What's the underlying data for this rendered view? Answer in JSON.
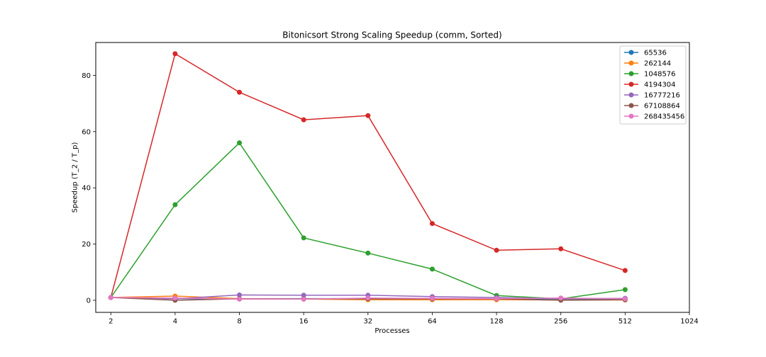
{
  "chart_data": {
    "type": "line",
    "title": "Bitonicsort Strong Scaling Speedup (comm, Sorted)",
    "xlabel": "Processes",
    "ylabel": "Speedup (T_2 / T_p)",
    "x_scale": "log2",
    "x_ticks": [
      2,
      4,
      8,
      16,
      32,
      64,
      128,
      256,
      512,
      1024
    ],
    "x_tick_labels": [
      "2",
      "4",
      "8",
      "16",
      "32",
      "64",
      "128",
      "256",
      "512",
      "1024"
    ],
    "xlim": [
      1.7,
      1024
    ],
    "y_ticks": [
      0,
      20,
      40,
      60,
      80
    ],
    "ylim": [
      -4.3,
      91.7
    ],
    "grid": false,
    "legend_position": "top-right",
    "x": [
      2,
      4,
      8,
      16,
      32,
      64,
      128,
      256,
      512
    ],
    "series": [
      {
        "name": "65536",
        "color": "#1f77b4",
        "values": [
          1.0,
          0.6,
          0.5,
          0.6,
          0.6,
          0.6,
          0.5,
          0.4,
          0.3
        ]
      },
      {
        "name": "262144",
        "color": "#ff7f0e",
        "values": [
          1.0,
          1.5,
          0.6,
          0.4,
          0.2,
          0.2,
          0.2,
          0.1,
          0.1
        ]
      },
      {
        "name": "1048576",
        "color": "#2ca02c",
        "values": [
          1.0,
          34.0,
          56.0,
          22.2,
          16.8,
          11.1,
          1.7,
          0.5,
          3.8
        ]
      },
      {
        "name": "4194304",
        "color": "#d62728",
        "values": [
          1.0,
          87.7,
          74.0,
          64.2,
          65.7,
          27.3,
          17.8,
          18.3,
          10.6
        ]
      },
      {
        "name": "16777216",
        "color": "#9467bd",
        "values": [
          1.0,
          0.5,
          1.9,
          1.8,
          1.8,
          1.3,
          1.0,
          0.6,
          0.7
        ]
      },
      {
        "name": "67108864",
        "color": "#8c564b",
        "values": [
          1.0,
          0.0,
          0.5,
          0.5,
          0.5,
          0.5,
          0.5,
          0.0,
          0.2
        ]
      },
      {
        "name": "268435456",
        "color": "#e377c2",
        "values": [
          1.0,
          0.8,
          0.4,
          0.4,
          0.8,
          0.7,
          0.6,
          0.8,
          0.5
        ]
      }
    ]
  }
}
